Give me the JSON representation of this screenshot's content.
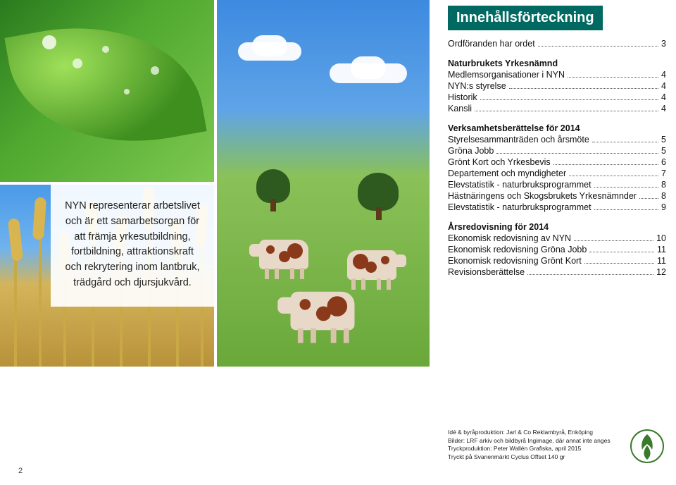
{
  "overlay": {
    "text": "NYN representerar arbetslivet och är ett samarbetsorgan för att främja yrkesutbildning, fortbildning, attraktionskraft och rekrytering inom lantbruk, trädgård och djursjukvård."
  },
  "toc": {
    "title": "Innehållsförteckning",
    "sections": [
      {
        "heading": null,
        "items": [
          {
            "label": "Ordföranden har ordet",
            "page": "3"
          }
        ]
      },
      {
        "heading": "Naturbrukets Yrkesnämnd",
        "items": [
          {
            "label": "Medlemsorganisationer i NYN",
            "page": "4"
          },
          {
            "label": "NYN:s styrelse",
            "page": "4"
          },
          {
            "label": "Historik",
            "page": "4"
          },
          {
            "label": "Kansli",
            "page": "4"
          }
        ]
      },
      {
        "heading": "Verksamhetsberättelse för 2014",
        "items": [
          {
            "label": "Styrelsesammanträden och årsmöte",
            "page": "5"
          },
          {
            "label": "Gröna Jobb",
            "page": "5"
          },
          {
            "label": "Grönt Kort och Yrkesbevis",
            "page": "6"
          },
          {
            "label": "Departement och myndigheter",
            "page": "7"
          },
          {
            "label": "Elevstatistik - naturbruksprogrammet",
            "page": "8"
          },
          {
            "label": "Hästnäringens och Skogsbrukets Yrkesnämnder",
            "page": "8"
          },
          {
            "label": "Elevstatistik - naturbruksprogrammet",
            "page": "9"
          }
        ]
      },
      {
        "heading": "Årsredovisning för 2014",
        "items": [
          {
            "label": "Ekonomisk redovisning av NYN",
            "page": "10"
          },
          {
            "label": "Ekonomisk redovisning Gröna Jobb",
            "page": "11"
          },
          {
            "label": "Ekonomisk redovisning Grönt Kort",
            "page": "11"
          },
          {
            "label": "Revisionsberättelse",
            "page": "12"
          }
        ]
      }
    ]
  },
  "credits": {
    "line1": "Idé & byråproduktion: Jarl & Co Reklambyrå, Enköping",
    "line2": "Bilder: LRF arkiv och bildbyrå Ingimage, där annat inte anges",
    "line3": "Tryckproduktion: Peter Wallén Grafiska, april 2015",
    "line4": "Tryckt på Svanenmärkt Cyclus Offset 140 gr"
  },
  "pageNumber": "2",
  "colors": {
    "tocTitleBg": "#006a62",
    "white": "#ffffff",
    "ecoGreen": "#3a7a2a"
  }
}
